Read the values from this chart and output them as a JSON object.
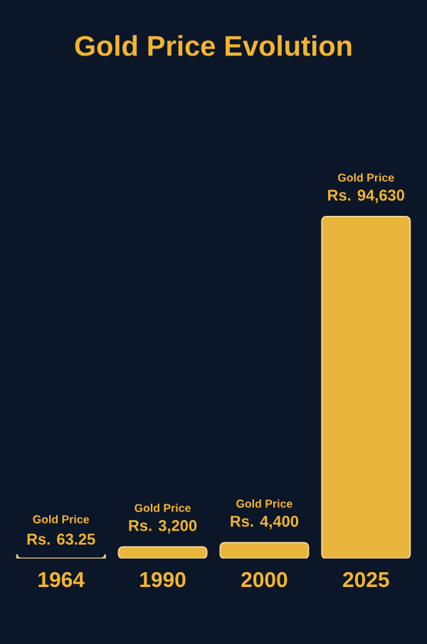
{
  "chart_data": {
    "type": "bar",
    "title": "Gold Price Evolution",
    "categories": [
      "1964",
      "1990",
      "2000",
      "2025"
    ],
    "values": [
      63.25,
      3200,
      4400,
      94630
    ],
    "color": "#e9b53c",
    "value_labels": [
      "Rs. 63.25",
      "Rs. 3,200",
      "Rs. 4,400",
      "Rs. 94,630"
    ],
    "annotations": [
      "Gold Price",
      "Gold Price",
      "Gold Price",
      "Gold Price"
    ]
  }
}
